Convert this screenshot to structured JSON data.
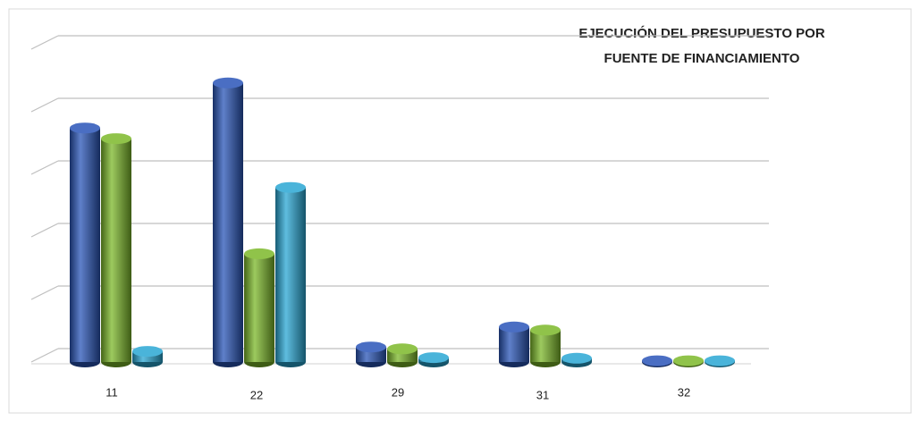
{
  "chart_data": {
    "type": "bar3d",
    "title_lines": [
      "EJECUCIÓN DEL PRESUPUESTO POR",
      "FUENTE DE FINANCIAMIENTO"
    ],
    "categories": [
      "11",
      "22",
      "29",
      "31",
      "32"
    ],
    "series": [
      {
        "color": "#2a55b8",
        "values": [
          3.74,
          4.46,
          0.24,
          0.56,
          0.02
        ]
      },
      {
        "color": "#7cb82a",
        "values": [
          3.57,
          1.73,
          0.21,
          0.51,
          0.02
        ]
      },
      {
        "color": "#2aa7d4",
        "values": [
          0.17,
          2.79,
          0.07,
          0.06,
          0.02
        ]
      }
    ],
    "ylim": [
      0,
      5
    ],
    "yticks": [
      0,
      1,
      2,
      3,
      4,
      5
    ],
    "grid": true
  }
}
